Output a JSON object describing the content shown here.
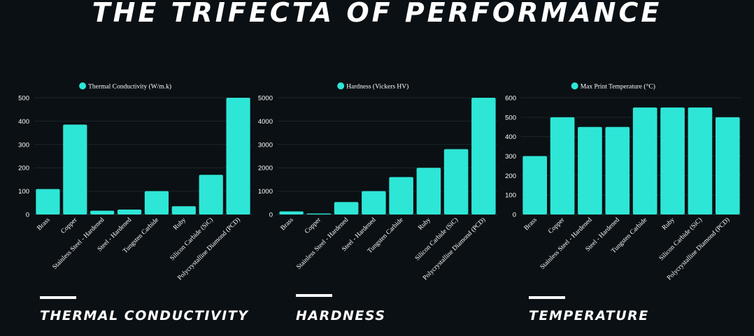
{
  "title": "THE TRIFECTA OF PERFORMANCE",
  "bar_color": "#2ee6d6",
  "background": "#0a1014",
  "sections": [
    {
      "heading": "THERMAL CONDUCTIVITY"
    },
    {
      "heading": "HARDNESS"
    },
    {
      "heading": "TEMPERATURE"
    }
  ],
  "chart_data": [
    {
      "type": "bar",
      "legend": "Thermal Conductivity (W/m.k)",
      "legend_position": "top",
      "categories": [
        "Brass",
        "Copper",
        "Stainless Steel - Hardened",
        "Steel - Hardened",
        "Tungsten Carbide",
        "Ruby",
        "Silicon Carbide (SiC)",
        "Polycrystalline Diamond (PCD)"
      ],
      "values": [
        109,
        385,
        16,
        21,
        100,
        35,
        170,
        500
      ],
      "ylim": [
        0,
        500
      ],
      "yticks": [
        "0",
        "100",
        "200",
        "300",
        "400",
        "500"
      ],
      "grid": true
    },
    {
      "type": "bar",
      "legend": "Hardness (Vickers HV)",
      "legend_position": "top",
      "categories": [
        "Brass",
        "Copper",
        "Stainless Steel - Hardened",
        "Steel - Hardened",
        "Tungsten Carbide",
        "Ruby",
        "Silicon Carbide (SiC)",
        "Polycrystalline Diamond (PCD)"
      ],
      "values": [
        130,
        40,
        530,
        1000,
        1600,
        2000,
        2800,
        5000
      ],
      "ylim": [
        0,
        5000
      ],
      "yticks": [
        "0",
        "1000",
        "2000",
        "3000",
        "4000",
        "5000"
      ],
      "grid": true
    },
    {
      "type": "bar",
      "legend": "Max Print Temperature (°C)",
      "legend_position": "top",
      "categories": [
        "Brass",
        "Copper",
        "Stainless Steel - Hardened",
        "Steel - Hardened",
        "Tungsten Carbide",
        "Ruby",
        "Silicon Carbide (SiC)",
        "Polycrystalline Diamond (PCD)"
      ],
      "values": [
        300,
        500,
        450,
        450,
        550,
        550,
        550,
        500
      ],
      "ylim": [
        0,
        600
      ],
      "yticks": [
        "0",
        "100",
        "200",
        "300",
        "400",
        "500",
        "600"
      ],
      "grid": true
    }
  ]
}
